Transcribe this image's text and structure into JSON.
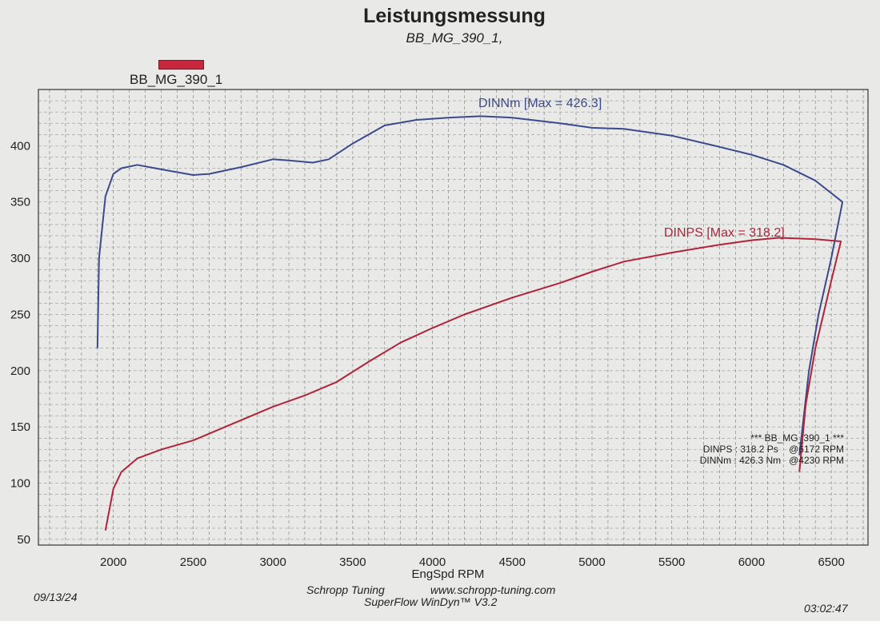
{
  "title": "Leistungsmessung",
  "subtitle": "BB_MG_390_1,",
  "legend": {
    "label": "BB_MG_390_1",
    "color": "#c8283e"
  },
  "footer": {
    "date": "09/13/24",
    "company": "Schropp Tuning",
    "url": "www.schropp-tuning.com",
    "software": "SuperFlow WinDyn™ V3.2",
    "time": "03:02:47"
  },
  "summary": {
    "header": "*** BB_MG_390_1 ***",
    "line1": "DINPS : 318.2 Ps    @6172 RPM",
    "line2": "DINNm : 426.3 Nm   @4230 RPM"
  },
  "chart_data": {
    "type": "line",
    "title": "Leistungsmessung",
    "xlabel": "EngSpd RPM",
    "ylabel": "",
    "xlim": [
      1530,
      6730
    ],
    "ylim": [
      45,
      450
    ],
    "xticks": [
      2000,
      2500,
      3000,
      3500,
      4000,
      4500,
      5000,
      5500,
      6000,
      6500
    ],
    "yticks": [
      50,
      100,
      150,
      200,
      250,
      300,
      350,
      400
    ],
    "grid": true,
    "series": [
      {
        "name": "DINNm",
        "annotation": "DINNm  [Max = 426.3]",
        "color": "#3b4a8c",
        "x": [
          1900,
          1910,
          1950,
          2000,
          2050,
          2150,
          2300,
          2500,
          2600,
          2800,
          3000,
          3100,
          3250,
          3350,
          3500,
          3700,
          3900,
          4100,
          4300,
          4500,
          4800,
          5000,
          5200,
          5500,
          5800,
          6000,
          6200,
          6400,
          6570,
          6500,
          6420,
          6360,
          6300
        ],
        "y": [
          220,
          300,
          355,
          375,
          380,
          383,
          379,
          374,
          375,
          381,
          388,
          387,
          385,
          388,
          402,
          418,
          423,
          425,
          426.3,
          425,
          420,
          416,
          415,
          409,
          399,
          392,
          383,
          369,
          350,
          300,
          250,
          200,
          125
        ]
      },
      {
        "name": "DINPS",
        "annotation": "DINPS  [Max = 318.2]",
        "color": "#b0243a",
        "x": [
          1950,
          2000,
          2050,
          2150,
          2300,
          2500,
          2700,
          3000,
          3200,
          3400,
          3600,
          3800,
          4000,
          4200,
          4500,
          4800,
          5000,
          5200,
          5500,
          5800,
          6000,
          6172,
          6400,
          6560,
          6500,
          6450,
          6400,
          6340,
          6300
        ],
        "y": [
          58,
          95,
          110,
          122,
          130,
          138,
          150,
          168,
          178,
          190,
          208,
          225,
          238,
          250,
          265,
          278,
          288,
          297,
          305,
          312,
          316,
          318.2,
          317,
          315,
          280,
          250,
          220,
          170,
          110
        ]
      }
    ]
  }
}
